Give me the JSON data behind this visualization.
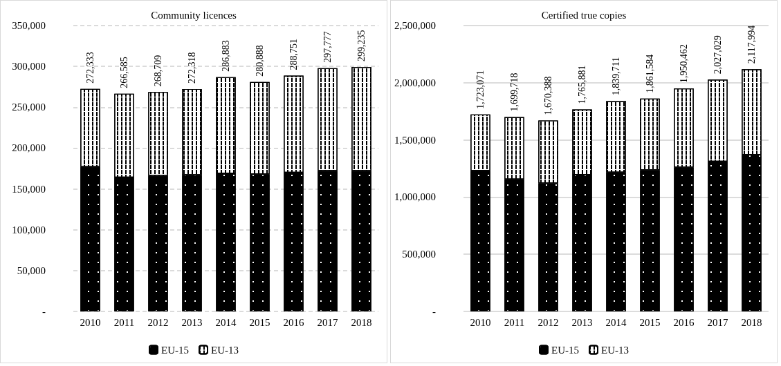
{
  "chart_data": [
    {
      "type": "bar",
      "title": "Community licences",
      "stacked": true,
      "categories": [
        "2010",
        "2011",
        "2012",
        "2013",
        "2014",
        "2015",
        "2016",
        "2017",
        "2018"
      ],
      "series": [
        {
          "name": "EU-15",
          "color": "#000000",
          "values": [
            177000,
            164000,
            166000,
            167000,
            169000,
            168000,
            170000,
            172000,
            172000
          ]
        },
        {
          "name": "EU-13",
          "color": "#ffffff",
          "values": [
            95333,
            102585,
            102709,
            105318,
            117883,
            112888,
            118751,
            125777,
            127235
          ]
        }
      ],
      "totals": [
        "272,333",
        "266,585",
        "268,709",
        "272,318",
        "286,883",
        "280,888",
        "288,751",
        "297,777",
        "299,235"
      ],
      "ylim": [
        0,
        350000
      ],
      "yticks": [
        {
          "value": 0,
          "label": "-"
        },
        {
          "value": 50000,
          "label": "50,000"
        },
        {
          "value": 100000,
          "label": "100,000"
        },
        {
          "value": 150000,
          "label": "150,000"
        },
        {
          "value": 200000,
          "label": "200,000"
        },
        {
          "value": 250000,
          "label": "250,000"
        },
        {
          "value": 300000,
          "label": "300,000"
        },
        {
          "value": 350000,
          "label": "350,000"
        }
      ],
      "grid": "y",
      "line_style": "dashed",
      "legend": "bottom"
    },
    {
      "type": "bar",
      "title": "Certified true copies",
      "stacked": true,
      "categories": [
        "2010",
        "2011",
        "2012",
        "2013",
        "2014",
        "2015",
        "2016",
        "2017",
        "2018"
      ],
      "series": [
        {
          "name": "EU-15",
          "color": "#000000",
          "values": [
            1230000,
            1155000,
            1120000,
            1195000,
            1215000,
            1235000,
            1260000,
            1310000,
            1370000
          ]
        },
        {
          "name": "EU-13",
          "color": "#ffffff",
          "values": [
            493071,
            544718,
            550388,
            570881,
            624711,
            626584,
            690462,
            717029,
            747994
          ]
        }
      ],
      "totals": [
        "1,723,071",
        "1,699,718",
        "1,670,388",
        "1,765,881",
        "1,839,711",
        "1,861,584",
        "1,950,462",
        "2,027,029",
        "2,117,994"
      ],
      "ylim": [
        0,
        2500000
      ],
      "yticks": [
        {
          "value": 0,
          "label": "-"
        },
        {
          "value": 500000,
          "label": "500,000"
        },
        {
          "value": 1000000,
          "label": "1,000,000"
        },
        {
          "value": 1500000,
          "label": "1,500,000"
        },
        {
          "value": 2000000,
          "label": "2,000,000"
        },
        {
          "value": 2500000,
          "label": "2,500,000"
        }
      ],
      "grid": "y",
      "legend": "bottom"
    }
  ]
}
